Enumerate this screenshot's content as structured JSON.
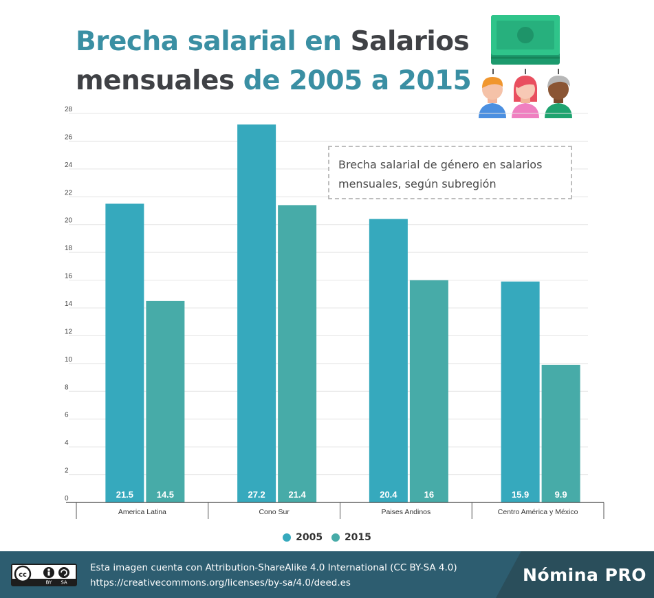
{
  "title": {
    "part1": "Brecha salarial en ",
    "part2": "Salarios",
    "part3": "mensuales ",
    "part4": "de 2005 a 2015"
  },
  "subtitle": {
    "line1": "Brecha salarial de género en salarios",
    "line2": "mensuales, según subregión"
  },
  "colors": {
    "title_accent": "#3a8fa3",
    "title_dark": "#3f4145",
    "series_2005": "#36a9bd",
    "series_2015": "#47aba8",
    "footer": "#2d5d70"
  },
  "icons": [
    "money-bill-icon",
    "man-avatar-icon",
    "woman-avatar-icon",
    "elder-avatar-icon",
    "creative-commons-icon"
  ],
  "chart_data": {
    "type": "bar",
    "title": "",
    "xlabel": "",
    "ylabel": "",
    "categories": [
      "America Latina",
      "Cono Sur",
      "Paises Andinos",
      "Centro América y México"
    ],
    "series": [
      {
        "name": "2005",
        "values": [
          21.5,
          27.2,
          20.4,
          15.9
        ],
        "labels": [
          "21.5",
          "27.2",
          "20.4",
          "15.9"
        ]
      },
      {
        "name": "2015",
        "values": [
          14.5,
          21.4,
          16,
          9.9
        ],
        "labels": [
          "14.5",
          "21.4",
          "16",
          "9.9"
        ]
      }
    ],
    "ylim": [
      0,
      28
    ],
    "yticks": [
      "0",
      "2",
      "4",
      "6",
      "8",
      "10",
      "12",
      "14",
      "16",
      "18",
      "20",
      "22",
      "24",
      "26",
      "28"
    ],
    "grid": true,
    "legend": "bottom-center"
  },
  "footer": {
    "line1": "Esta imagen cuenta con Attribution-ShareAlike 4.0 International (CC BY-SA 4.0)",
    "line2": "https://creativecommons.org/licenses/by-sa/4.0/deed.es",
    "brand": "Nómina PRO",
    "cc_by": "BY",
    "cc_sa": "SA"
  }
}
